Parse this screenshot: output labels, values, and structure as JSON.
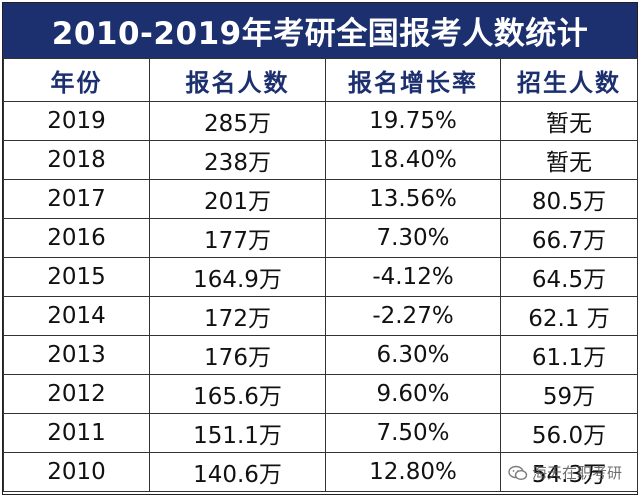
{
  "title": "2010-2019年考研全国报考人数统计",
  "headers": [
    "年份",
    "报名人数",
    "报名增长率",
    "招生人数"
  ],
  "rows": [
    [
      "2019",
      "285万",
      "19.75%",
      "暂无"
    ],
    [
      "2018",
      "238万",
      "18.40%",
      "暂无"
    ],
    [
      "2017",
      "201万",
      "13.56%",
      "80.5万"
    ],
    [
      "2016",
      "177万",
      "7.30%",
      "66.7万"
    ],
    [
      "2015",
      "164.9万",
      "-4.12%",
      "64.5万"
    ],
    [
      "2014",
      "172万",
      "-2.27%",
      "62.1 万"
    ],
    [
      "2013",
      "176万",
      "6.30%",
      "61.1万"
    ],
    [
      "2012",
      "165.6万",
      "9.60%",
      "59万"
    ],
    [
      "2011",
      "151.1万",
      "7.50%",
      "56.0万"
    ],
    [
      "2010",
      "140.6万",
      "12.80%",
      "54.3万"
    ]
  ],
  "watermark": "海天在职考研",
  "colors": {
    "title_background": "#1c2f6e",
    "header_text": "#1c2f6e"
  }
}
